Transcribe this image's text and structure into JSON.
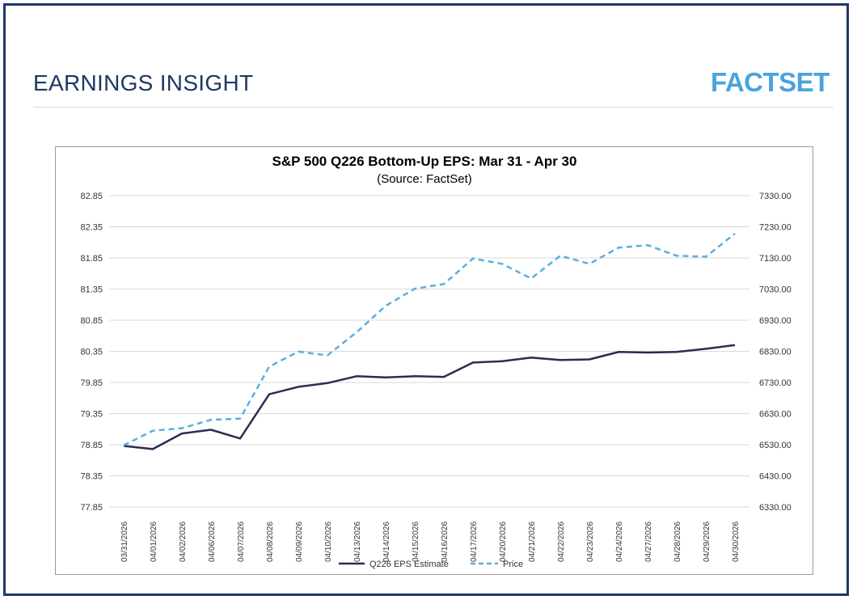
{
  "header": {
    "title": "EARNINGS INSIGHT",
    "logo_text": "FACTSET"
  },
  "colors": {
    "frame": "#1f3864",
    "title": "#1f3864",
    "logo": "#4aa3df",
    "eps_line": "#2b2d4f",
    "price_line": "#5aaee0",
    "grid": "#d9d9d9"
  },
  "chart_data": {
    "type": "line",
    "title": "S&P 500 Q226 Bottom-Up EPS: Mar 31 - Apr 30",
    "subtitle": "(Source: FactSet)",
    "categories": [
      "03/31/2026",
      "04/01/2026",
      "04/02/2026",
      "04/06/2026",
      "04/07/2026",
      "04/08/2026",
      "04/09/2026",
      "04/10/2026",
      "04/13/2026",
      "04/14/2026",
      "04/15/2026",
      "04/16/2026",
      "04/17/2026",
      "04/20/2026",
      "04/21/2026",
      "04/22/2026",
      "04/23/2026",
      "04/24/2026",
      "04/27/2026",
      "04/28/2026",
      "04/29/2026",
      "04/30/2026"
    ],
    "left_axis": {
      "ylim": [
        77.85,
        82.85
      ],
      "ticks": [
        "82.85",
        "82.35",
        "81.85",
        "81.35",
        "80.85",
        "80.35",
        "79.85",
        "79.35",
        "78.85",
        "78.35",
        "77.85"
      ]
    },
    "right_axis": {
      "ylim": [
        6330,
        7330
      ],
      "ticks": [
        "7330.00",
        "7230.00",
        "7130.00",
        "7030.00",
        "6930.00",
        "6830.00",
        "6730.00",
        "6630.00",
        "6530.00",
        "6430.00",
        "6330.00"
      ]
    },
    "series": [
      {
        "name": "Q226 EPS Estimate",
        "axis": "left",
        "style": "solid",
        "values": [
          78.83,
          78.78,
          79.03,
          79.09,
          78.95,
          79.66,
          79.78,
          79.84,
          79.95,
          79.93,
          79.95,
          79.94,
          80.17,
          80.19,
          80.25,
          80.21,
          80.22,
          80.34,
          80.33,
          80.34,
          80.39,
          80.45
        ]
      },
      {
        "name": "Price",
        "axis": "right",
        "style": "dashed",
        "values": [
          6528,
          6575,
          6583,
          6610,
          6614,
          6781,
          6829,
          6817,
          6891,
          6976,
          7031,
          7046,
          7128,
          7111,
          7064,
          7137,
          7111,
          7163,
          7171,
          7137,
          7134,
          7208
        ]
      }
    ],
    "grid": true,
    "legend": "bottom"
  }
}
